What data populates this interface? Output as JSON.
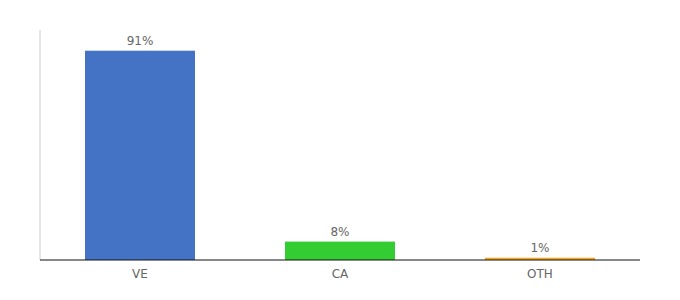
{
  "chart_data": {
    "type": "bar",
    "categories": [
      "VE",
      "CA",
      "OTH"
    ],
    "values": [
      91,
      8,
      1
    ],
    "value_labels": [
      "91%",
      "8%",
      "1%"
    ],
    "colors": [
      "#4472C4",
      "#33CC33",
      "#F4A823"
    ],
    "ylim": [
      0,
      100
    ],
    "grid": false,
    "data_labels": true,
    "tick_labels": "x"
  }
}
